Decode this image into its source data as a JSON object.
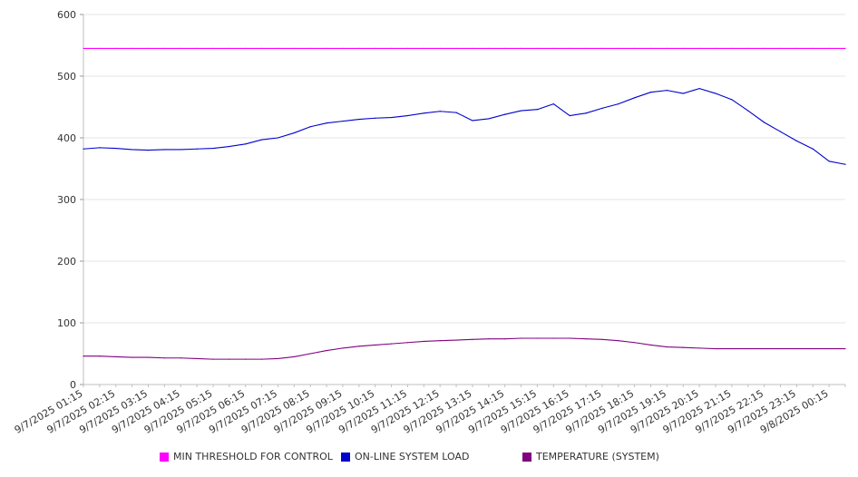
{
  "chart_data": {
    "type": "line",
    "title": "",
    "xlabel": "",
    "ylabel": "",
    "ylim": [
      0,
      600
    ],
    "yticks": [
      0,
      100,
      200,
      300,
      400,
      500,
      600
    ],
    "grid": true,
    "legend_position": "bottom",
    "x_tick_labels": [
      "9/7/2025 01:15",
      "9/7/2025 02:15",
      "9/7/2025 03:15",
      "9/7/2025 04:15",
      "9/7/2025 05:15",
      "9/7/2025 06:15",
      "9/7/2025 07:15",
      "9/7/2025 08:15",
      "9/7/2025 09:15",
      "9/7/2025 10:15",
      "9/7/2025 11:15",
      "9/7/2025 12:15",
      "9/7/2025 13:15",
      "9/7/2025 14:15",
      "9/7/2025 15:15",
      "9/7/2025 16:15",
      "9/7/2025 17:15",
      "9/7/2025 18:15",
      "9/7/2025 19:15",
      "9/7/2025 20:15",
      "9/7/2025 21:15",
      "9/7/2025 22:15",
      "9/7/2025 23:15",
      "9/8/2025 00:15"
    ],
    "x": [
      "9/7/2025 01:15",
      "9/7/2025 01:45",
      "9/7/2025 02:15",
      "9/7/2025 02:45",
      "9/7/2025 03:15",
      "9/7/2025 03:45",
      "9/7/2025 04:15",
      "9/7/2025 04:45",
      "9/7/2025 05:15",
      "9/7/2025 05:45",
      "9/7/2025 06:15",
      "9/7/2025 06:45",
      "9/7/2025 07:15",
      "9/7/2025 07:45",
      "9/7/2025 08:15",
      "9/7/2025 08:45",
      "9/7/2025 09:15",
      "9/7/2025 09:45",
      "9/7/2025 10:15",
      "9/7/2025 10:45",
      "9/7/2025 11:15",
      "9/7/2025 11:45",
      "9/7/2025 12:15",
      "9/7/2025 12:45",
      "9/7/2025 13:15",
      "9/7/2025 13:45",
      "9/7/2025 14:15",
      "9/7/2025 14:45",
      "9/7/2025 15:15",
      "9/7/2025 15:45",
      "9/7/2025 16:15",
      "9/7/2025 16:45",
      "9/7/2025 17:15",
      "9/7/2025 17:45",
      "9/7/2025 18:15",
      "9/7/2025 18:45",
      "9/7/2025 19:15",
      "9/7/2025 19:45",
      "9/7/2025 20:15",
      "9/7/2025 20:45",
      "9/7/2025 21:15",
      "9/7/2025 21:45",
      "9/7/2025 22:15",
      "9/7/2025 22:45",
      "9/7/2025 23:15",
      "9/7/2025 23:45",
      "9/8/2025 00:15",
      "9/8/2025 00:45"
    ],
    "series": [
      {
        "name": "MIN THRESHOLD FOR CONTROL",
        "color": "#ff00ff",
        "values": [
          545,
          545,
          545,
          545,
          545,
          545,
          545,
          545,
          545,
          545,
          545,
          545,
          545,
          545,
          545,
          545,
          545,
          545,
          545,
          545,
          545,
          545,
          545,
          545,
          545,
          545,
          545,
          545,
          545,
          545,
          545,
          545,
          545,
          545,
          545,
          545,
          545,
          545,
          545,
          545,
          545,
          545,
          545,
          545,
          545,
          545,
          545,
          545
        ]
      },
      {
        "name": "ON-LINE SYSTEM LOAD",
        "color": "#0000cc",
        "values": [
          382,
          384,
          383,
          381,
          380,
          381,
          381,
          382,
          383,
          386,
          390,
          397,
          400,
          408,
          418,
          424,
          427,
          430,
          432,
          433,
          436,
          440,
          443,
          441,
          428,
          431,
          438,
          444,
          446,
          455,
          436,
          440,
          448,
          455,
          465,
          474,
          477,
          472,
          480,
          472,
          462,
          444,
          425,
          410,
          395,
          382,
          362,
          357
        ]
      },
      {
        "name": "TEMPERATURE (SYSTEM)",
        "color": "#800080",
        "values": [
          46,
          46,
          45,
          44,
          44,
          43,
          43,
          42,
          41,
          41,
          41,
          41,
          42,
          45,
          50,
          55,
          59,
          62,
          64,
          66,
          68,
          70,
          71,
          72,
          73,
          74,
          74,
          75,
          75,
          75,
          75,
          74,
          73,
          71,
          68,
          64,
          61,
          60,
          59,
          58,
          58,
          58,
          58,
          58,
          58,
          58,
          58,
          58
        ]
      }
    ]
  }
}
